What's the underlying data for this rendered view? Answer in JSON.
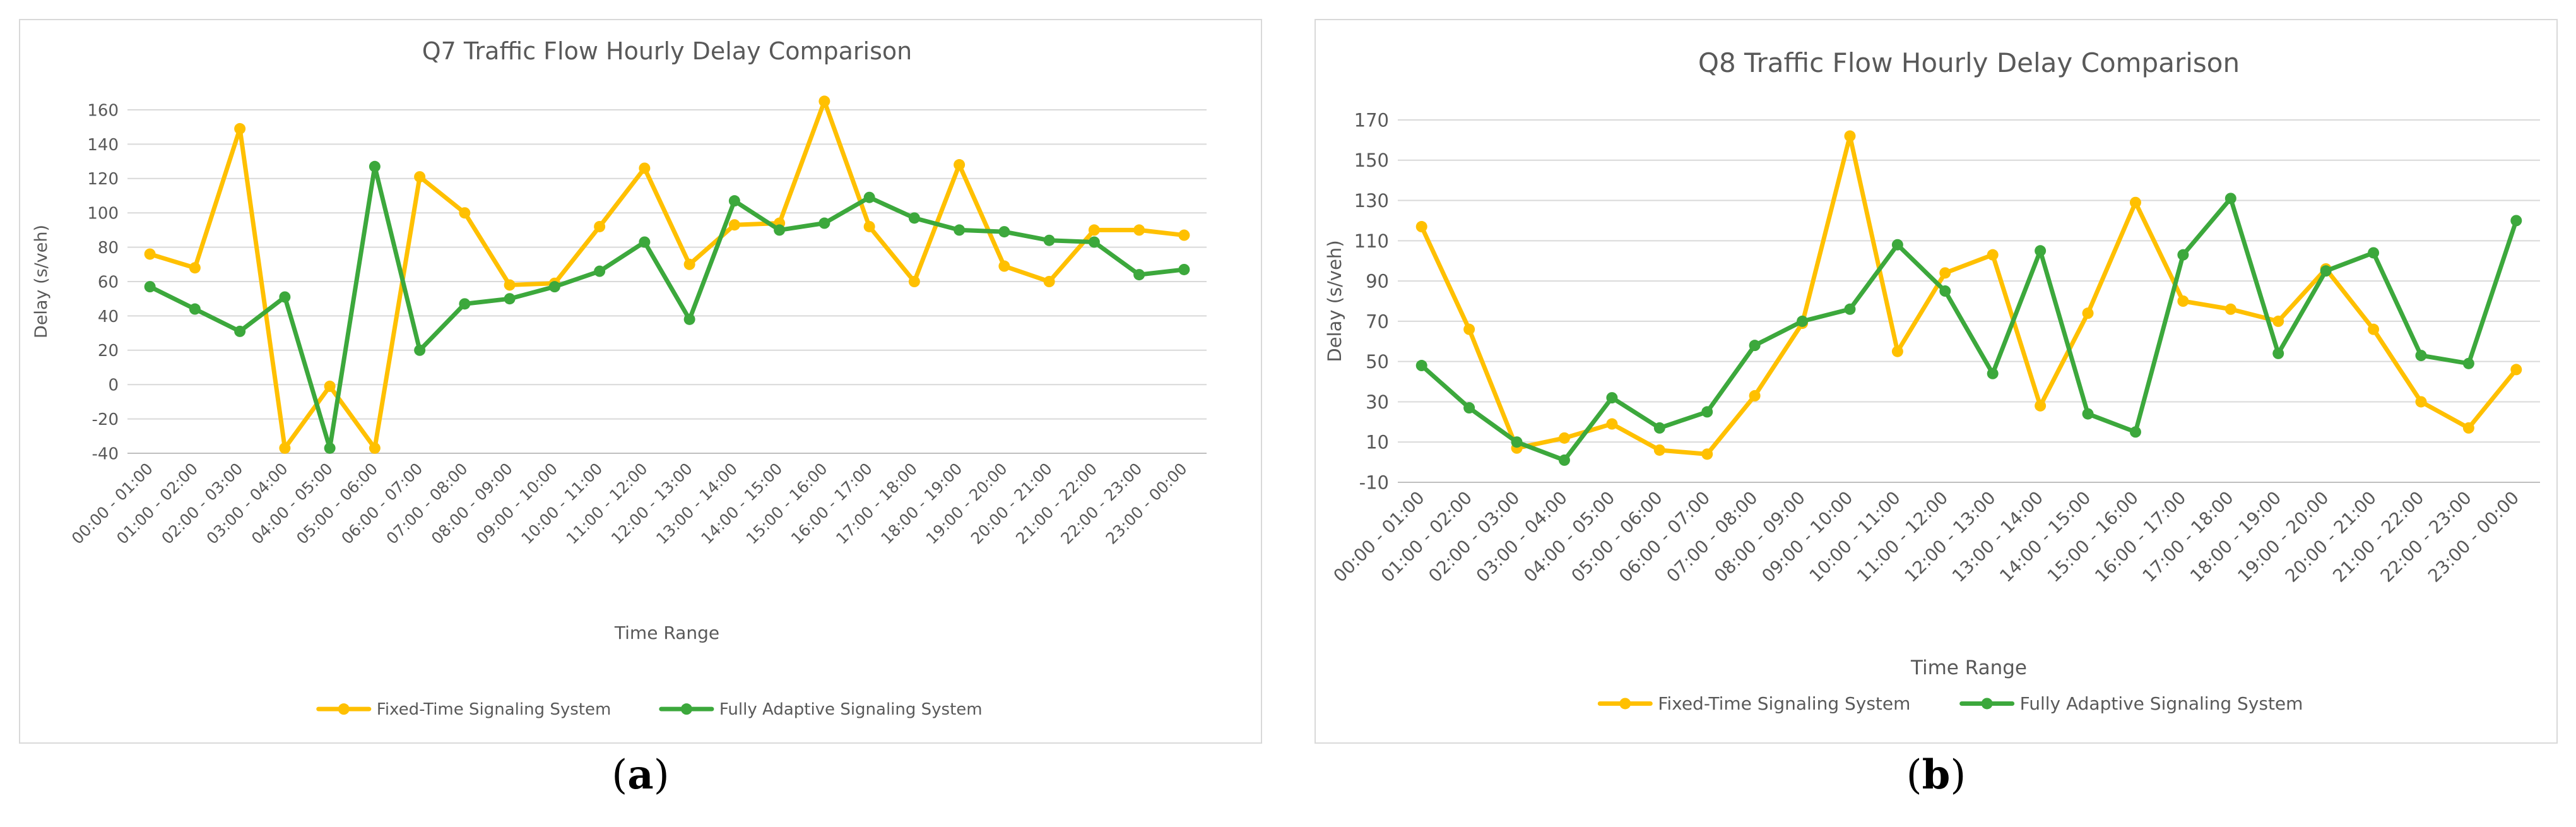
{
  "chart_data": [
    {
      "type": "line",
      "title": "Q7 Traffic Flow Hourly Delay Comparison",
      "xlabel": "Time Range",
      "ylabel": "Delay (s/veh)",
      "ylim": [
        -40,
        160
      ],
      "yticks": [
        -40,
        -20,
        0,
        20,
        40,
        60,
        80,
        100,
        120,
        140,
        160
      ],
      "grid": true,
      "legend": "bottom",
      "categories": [
        "00:00 - 01:00",
        "01:00 - 02:00",
        "02:00 - 03:00",
        "03:00 - 04:00",
        "04:00 - 05:00",
        "05:00 - 06:00",
        "06:00 - 07:00",
        "07:00 - 08:00",
        "08:00 - 09:00",
        "09:00 - 10:00",
        "10:00 - 11:00",
        "11:00 - 12:00",
        "12:00 - 13:00",
        "13:00 - 14:00",
        "14:00 - 15:00",
        "15:00 - 16:00",
        "16:00 - 17:00",
        "17:00 - 18:00",
        "18:00 - 19:00",
        "19:00 - 20:00",
        "20:00 - 21:00",
        "21:00 - 22:00",
        "22:00 - 23:00",
        "23:00 - 00:00"
      ],
      "series": [
        {
          "name": "Fixed-Time Signaling System",
          "color": "#ffc000",
          "values": [
            76,
            68,
            149,
            -37,
            -1,
            -37,
            121,
            100,
            58,
            59,
            92,
            126,
            70,
            93,
            94,
            165,
            92,
            60,
            128,
            69,
            60,
            90,
            90,
            87
          ]
        },
        {
          "name": "Fully Adaptive Signaling System",
          "color": "#3ca83c",
          "values": [
            57,
            44,
            31,
            51,
            -37,
            127,
            20,
            47,
            50,
            57,
            66,
            83,
            38,
            107,
            90,
            94,
            109,
            97,
            90,
            89,
            84,
            83,
            64,
            67
          ]
        }
      ]
    },
    {
      "type": "line",
      "title": "Q8 Traffic Flow Hourly Delay Comparison",
      "xlabel": "Time Range",
      "ylabel": "Delay (s/veh)",
      "ylim": [
        -10,
        170
      ],
      "yticks": [
        -10,
        10,
        30,
        50,
        70,
        90,
        110,
        130,
        150,
        170
      ],
      "grid": true,
      "legend": "bottom",
      "categories": [
        "00:00 - 01:00",
        "01:00 - 02:00",
        "02:00 - 03:00",
        "03:00 - 04:00",
        "04:00 - 05:00",
        "05:00 - 06:00",
        "06:00 - 07:00",
        "07:00 - 08:00",
        "08:00 - 09:00",
        "09:00 - 10:00",
        "10:00 - 11:00",
        "11:00 - 12:00",
        "12:00 - 13:00",
        "13:00 - 14:00",
        "14:00 - 15:00",
        "15:00 - 16:00",
        "16:00 - 17:00",
        "17:00 - 18:00",
        "18:00 - 19:00",
        "19:00 - 20:00",
        "20:00 - 21:00",
        "21:00 - 22:00",
        "22:00 - 23:00",
        "23:00 - 00:00"
      ],
      "series": [
        {
          "name": "Fixed-Time Signaling System",
          "color": "#ffc000",
          "values": [
            117,
            66,
            7,
            12,
            19,
            6,
            4,
            33,
            69,
            162,
            55,
            94,
            103,
            28,
            74,
            129,
            80,
            76,
            70,
            96,
            66,
            30,
            17,
            46
          ]
        },
        {
          "name": "Fully Adaptive Signaling System",
          "color": "#3ca83c",
          "values": [
            48,
            27,
            10,
            1,
            32,
            17,
            25,
            58,
            70,
            76,
            108,
            85,
            44,
            105,
            24,
            15,
            103,
            131,
            54,
            95,
            104,
            53,
            49,
            120
          ]
        }
      ]
    }
  ],
  "captions": [
    {
      "prefix": "(",
      "letter": "a",
      "suffix": ")"
    },
    {
      "prefix": "(",
      "letter": "b",
      "suffix": ")"
    }
  ]
}
